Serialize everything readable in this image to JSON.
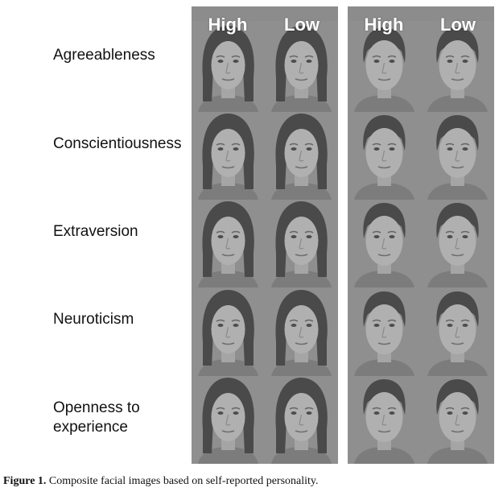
{
  "headers": {
    "female": [
      "High",
      "Low"
    ],
    "male": [
      "High",
      "Low"
    ]
  },
  "traits": [
    "Agreeableness",
    "Conscientiousness",
    "Extraversion",
    "Neuroticism",
    "Openness to\nexperience"
  ],
  "caption": {
    "label": "Figure 1.",
    "text": "Composite facial images based on self-reported personality."
  },
  "colors": {
    "panel_bg": "#8c8c8c",
    "skin": "#b0b0b0",
    "hair": "#4a4a4a"
  }
}
